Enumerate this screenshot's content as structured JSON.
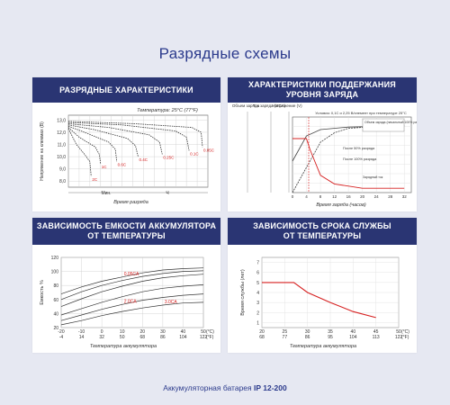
{
  "page": {
    "title": "Разрядные схемы"
  },
  "footer": {
    "text": "Аккумуляторная батарея ",
    "model": "IP 12-200"
  },
  "panels": {
    "discharge": {
      "title": "РАЗРЯДНЫЕ ХАРАКТЕРИСТИКИ"
    },
    "charge": {
      "title_1": "ХАРАКТЕРИСТИКИ ПОДДЕРЖАНИЯ",
      "title_2": "УРОВНЯ ЗАРЯДА"
    },
    "capacity": {
      "title_1": "ЗАВИСИМОСТЬ ЕМКОСТИ АККУМУЛЯТОРА",
      "title_2": "ОТ ТЕМПЕРАТУРЫ"
    },
    "life": {
      "title_1": "ЗАВИСИМОСТЬ СРОКА СЛУЖБЫ",
      "title_2": "ОТ ТЕМПЕРАТУРЫ"
    }
  },
  "colors": {
    "header": "#2a3573",
    "title": "#2b3a8c",
    "red": "#d62020",
    "curve": "#333333"
  },
  "chart_data": [
    {
      "type": "line",
      "ylabel": "Напряжение на клеммах (В)",
      "xlabel": "Время разряда",
      "annotation": "Температура: 25°C (77°F)",
      "x_unit_labels": [
        "Мин.",
        "Ч"
      ],
      "y_ticks": [
        "13,0",
        "12,0",
        "11,0",
        "10,0",
        "9,0",
        "8,0"
      ],
      "ylim": [
        7.5,
        13.4
      ],
      "series": [
        {
          "name": "2C",
          "x": [
            0,
            0.3,
            0.6,
            0.8,
            0.85
          ],
          "y": [
            12.3,
            11.0,
            10.2,
            9.6,
            8.4
          ]
        },
        {
          "name": "1C",
          "x": [
            0,
            0.4,
            1.0,
            1.15,
            1.2
          ],
          "y": [
            12.4,
            11.6,
            10.8,
            10.2,
            9.4
          ]
        },
        {
          "name": "0.6C",
          "x": [
            0,
            0.6,
            1.5,
            1.75,
            1.8
          ],
          "y": [
            12.5,
            12.0,
            11.2,
            10.6,
            9.6
          ]
        },
        {
          "name": "0.4C",
          "x": [
            0,
            1.0,
            2.2,
            2.5,
            2.6
          ],
          "y": [
            12.6,
            12.2,
            11.5,
            10.9,
            10.0
          ]
        },
        {
          "name": "0.25C",
          "x": [
            0,
            1.5,
            3.0,
            3.4,
            3.5
          ],
          "y": [
            12.7,
            12.4,
            11.8,
            11.2,
            10.2
          ]
        },
        {
          "name": "0.1C",
          "x": [
            0,
            2.0,
            4.0,
            4.4,
            4.5
          ],
          "y": [
            12.8,
            12.6,
            12.1,
            11.6,
            10.5
          ]
        },
        {
          "name": "0.05C",
          "x": [
            0,
            2.5,
            4.6,
            4.95,
            5.0
          ],
          "y": [
            12.9,
            12.7,
            12.4,
            12.0,
            10.8
          ]
        }
      ]
    },
    {
      "type": "line",
      "xlabel": "Время заряда (часов)",
      "annotation": "Условия: 0,1С и 2,25 В/элемент при температуре 25°С",
      "left_axes": [
        "Объем заряда",
        "Ток заряда (XCA)",
        "Напряжение (V)"
      ],
      "x_ticks": [
        0,
        4,
        8,
        12,
        16,
        20,
        24,
        28,
        32
      ],
      "xlim": [
        0,
        34
      ],
      "legend": [
        "Объем заряда (начальный 100% разряд)",
        "После 50% разряда",
        "После 100% разряда",
        "Зарядный ток"
      ],
      "series": [
        {
          "name": "После 50% разряда",
          "x": [
            0,
            2,
            4,
            8,
            16,
            32
          ],
          "y": [
            50,
            70,
            90,
            100,
            104,
            106
          ]
        },
        {
          "name": "После 100% разряда",
          "x": [
            0,
            4,
            8,
            12,
            16,
            24,
            32
          ],
          "y": [
            0,
            40,
            80,
            95,
            102,
            105,
            106
          ]
        },
        {
          "name": "Зарядный ток",
          "x": [
            0,
            4,
            5,
            8,
            12,
            20,
            32
          ],
          "y": [
            0.25,
            0.25,
            0.2,
            0.08,
            0.04,
            0.02,
            0.02
          ]
        }
      ]
    },
    {
      "type": "line",
      "ylabel": "Емкость %",
      "xlabel": "Температура аккумулятора",
      "x_ticks_c": [
        -20,
        -10,
        0,
        10,
        20,
        30,
        40,
        50
      ],
      "x_ticks_f": [
        -4,
        14,
        32,
        50,
        68,
        86,
        104,
        122
      ],
      "y_ticks": [
        120,
        100,
        80,
        60,
        40,
        20
      ],
      "xlim": [
        -20,
        50
      ],
      "ylim": [
        20,
        120
      ],
      "units": [
        "(°C)",
        "(°F)"
      ],
      "series": [
        {
          "name": "0.05CA",
          "x": [
            -20,
            -10,
            0,
            10,
            20,
            30,
            40,
            50
          ],
          "y": [
            68,
            78,
            86,
            92,
            98,
            102,
            104,
            105
          ]
        },
        {
          "name": "0.1CA",
          "x": [
            -20,
            -10,
            0,
            10,
            20,
            30,
            40,
            50
          ],
          "y": [
            60,
            71,
            80,
            87,
            93,
            97,
            100,
            101
          ]
        },
        {
          "name": "0.2CA",
          "x": [
            -20,
            -10,
            0,
            10,
            20,
            30,
            40,
            50
          ],
          "y": [
            50,
            61,
            71,
            79,
            86,
            91,
            94,
            96
          ]
        },
        {
          "name": "1.0CA",
          "x": [
            -20,
            -10,
            0,
            10,
            20,
            30,
            40,
            50
          ],
          "y": [
            38,
            47,
            56,
            64,
            71,
            76,
            79,
            81
          ]
        },
        {
          "name": "2.0CA",
          "x": [
            -20,
            -10,
            0,
            10,
            20,
            30,
            40,
            50
          ],
          "y": [
            30,
            38,
            46,
            53,
            59,
            63,
            66,
            68
          ]
        },
        {
          "name": "3.0CA",
          "x": [
            -20,
            -10,
            0,
            10,
            20,
            30,
            40,
            50
          ],
          "y": [
            24,
            30,
            37,
            43,
            48,
            52,
            55,
            56
          ]
        }
      ]
    },
    {
      "type": "line",
      "ylabel": "Время службы (лет)",
      "xlabel": "Температура аккумулятора",
      "x_ticks_c": [
        20,
        25,
        30,
        35,
        40,
        45,
        50
      ],
      "x_ticks_f": [
        68,
        77,
        86,
        95,
        104,
        113,
        122
      ],
      "y_ticks": [
        7,
        6,
        5,
        4,
        3,
        2,
        1
      ],
      "xlim": [
        20,
        50
      ],
      "ylim": [
        0.5,
        7.5
      ],
      "units": [
        "(°C)",
        "(°F)"
      ],
      "series": [
        {
          "name": "",
          "x": [
            20,
            25,
            27,
            30,
            35,
            40,
            45
          ],
          "y": [
            5,
            5,
            5,
            4,
            3,
            2.1,
            1.5
          ]
        }
      ]
    }
  ]
}
